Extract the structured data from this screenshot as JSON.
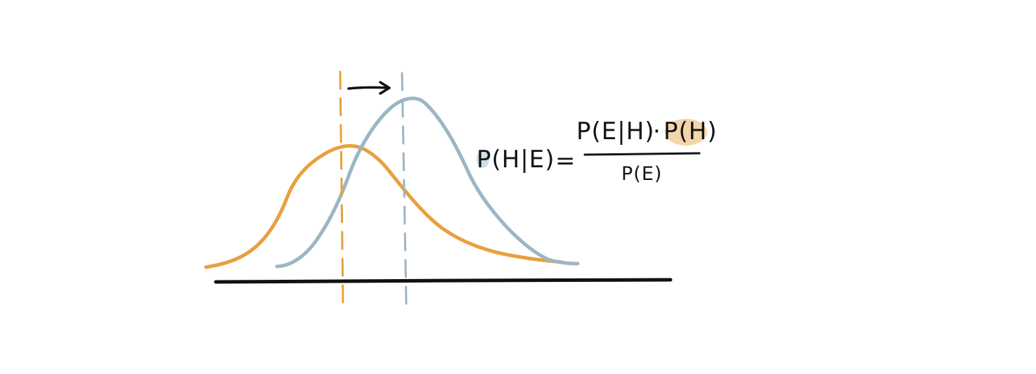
{
  "colors": {
    "prior": "#E8A03E",
    "posterior": "#9BB6C4",
    "axis": "#111111",
    "ink": "#151515",
    "highlight_prior": "#F2CFA2",
    "highlight_posterior": "#C9DBE5"
  },
  "icons": {
    "shift_arrow": "right-arrow-icon"
  },
  "formula": {
    "lhs": "P(H|E)",
    "equals": "=",
    "numerator_likelihood": "P(E|H)",
    "numerator_dot": "·",
    "numerator_prior": "P(H)",
    "denominator": "P(E)"
  }
}
